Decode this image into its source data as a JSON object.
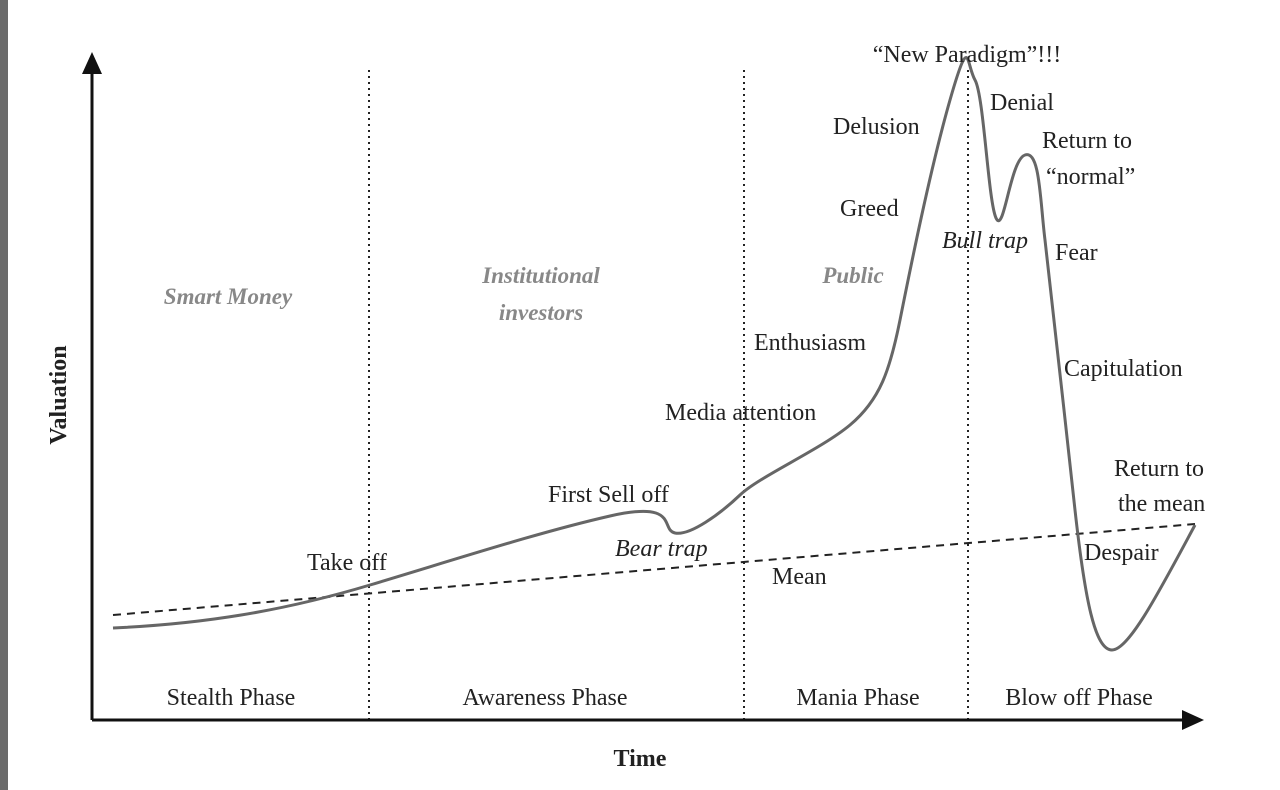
{
  "axes": {
    "x_label": "Time",
    "y_label": "Valuation"
  },
  "phases": [
    "Stealth Phase",
    "Awareness Phase",
    "Mania Phase",
    "Blow off Phase"
  ],
  "groups": [
    {
      "lines": [
        "Smart Money"
      ]
    },
    {
      "lines": [
        "Institutional",
        "investors"
      ]
    },
    {
      "lines": [
        "Public"
      ]
    }
  ],
  "annotations": [
    {
      "lines": [
        "“New Paradigm”!!!"
      ]
    },
    {
      "lines": [
        "Denial"
      ]
    },
    {
      "lines": [
        "Delusion"
      ]
    },
    {
      "lines": [
        "Return to",
        "“normal”"
      ]
    },
    {
      "lines": [
        "Greed"
      ]
    },
    {
      "lines": [
        "Bull trap"
      ]
    },
    {
      "lines": [
        "Fear"
      ]
    },
    {
      "lines": [
        "Enthusiasm"
      ]
    },
    {
      "lines": [
        "Capitulation"
      ]
    },
    {
      "lines": [
        "Media attention"
      ]
    },
    {
      "lines": [
        "Return to",
        "the mean"
      ]
    },
    {
      "lines": [
        "First Sell off"
      ]
    },
    {
      "lines": [
        "Bear trap"
      ]
    },
    {
      "lines": [
        "Take off"
      ]
    },
    {
      "lines": [
        "Despair"
      ]
    },
    {
      "lines": [
        "Mean"
      ]
    }
  ]
}
